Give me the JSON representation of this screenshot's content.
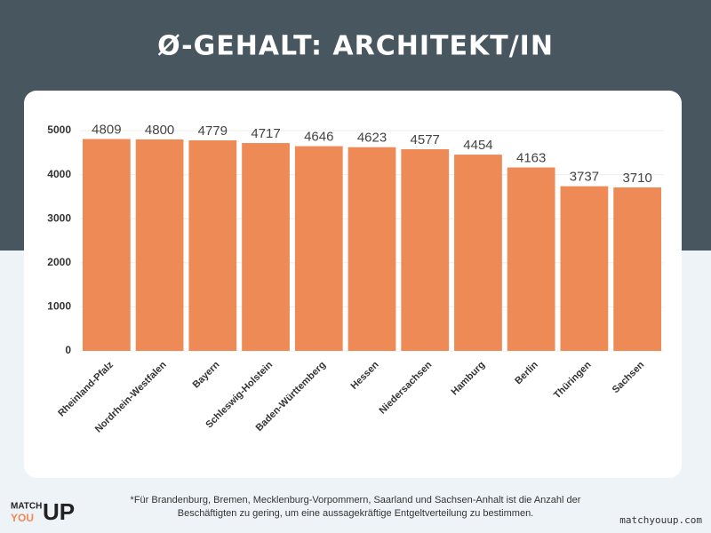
{
  "chart_data": {
    "type": "bar",
    "title": "Ø-GEHALT: ARCHITEKT/IN",
    "categories": [
      "Rheinland-Pfalz",
      "Nordrhein-Westfalen",
      "Bayern",
      "Schleswig-Holstein",
      "Baden-Württemberg",
      "Hessen",
      "Niedersachsen",
      "Hamburg",
      "Berlin",
      "Thüringen",
      "Sachsen"
    ],
    "values": [
      4809,
      4800,
      4779,
      4717,
      4646,
      4623,
      4577,
      4454,
      4163,
      3737,
      3710
    ],
    "color": "#ee8a56",
    "ylim": [
      0,
      5000
    ],
    "yticks": [
      0,
      1000,
      2000,
      3000,
      4000,
      5000
    ],
    "grid": true
  },
  "footnote": [
    "*Für Brandenburg, Bremen, Mecklenburg-Vorpommern, Saarland und Sachsen-Anhalt ist die Anzahl der",
    "Beschäftigten zu gering, um eine aussagekräftige Entgeltverteilung zu bestimmen."
  ],
  "logo": {
    "top": "MATCH",
    "left": "YOU",
    "right": "UP"
  },
  "website": "matchyouup.com"
}
